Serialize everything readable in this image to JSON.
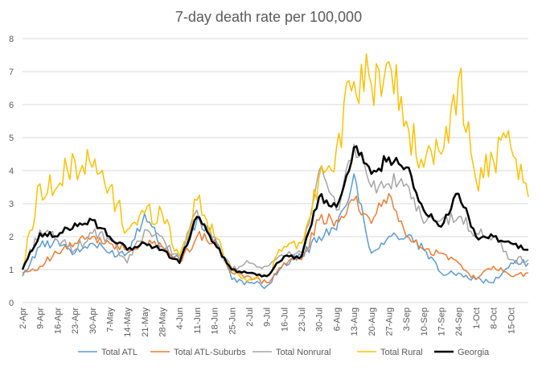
{
  "chart_data": {
    "type": "line",
    "title": "7-day death rate per 100,000",
    "xlabel": "",
    "ylabel": "",
    "ylim": [
      0,
      8
    ],
    "yticks": [
      0,
      1,
      2,
      3,
      4,
      5,
      6,
      7,
      8
    ],
    "grid": true,
    "legend": "bottom",
    "x_start": "2-Apr",
    "x_end": "17-Oct",
    "x_tick_labels": [
      "2-Apr",
      "9-Apr",
      "16-Apr",
      "23-Apr",
      "30-Apr",
      "7-May",
      "14-May",
      "21-May",
      "28-May",
      "4-Jun",
      "11-Jun",
      "18-Jun",
      "25-Jun",
      "2-Jul",
      "9-Jul",
      "16-Jul",
      "23-Jul",
      "30-Jul",
      "6-Aug",
      "13-Aug",
      "20-Aug",
      "27-Aug",
      "3-Sep",
      "10-Sep",
      "17-Sep",
      "24-Sep",
      "1-Oct",
      "8-Oct",
      "15-Oct"
    ],
    "anchor_labels": [
      "2-Apr",
      "9-Apr",
      "16-Apr",
      "23-Apr",
      "30-Apr",
      "7-May",
      "14-May",
      "21-May",
      "28-May",
      "4-Jun",
      "11-Jun",
      "18-Jun",
      "25-Jun",
      "2-Jul",
      "9-Jul",
      "16-Jul",
      "23-Jul",
      "30-Jul",
      "6-Aug",
      "13-Aug",
      "20-Aug",
      "27-Aug",
      "3-Sep",
      "10-Sep",
      "17-Sep",
      "24-Sep",
      "1-Oct",
      "8-Oct",
      "15-Oct",
      "17-Oct"
    ],
    "series": [
      {
        "name": "Total ATL",
        "color": "#5b9bd5",
        "width": 1.5,
        "values": [
          0.8,
          1.7,
          1.9,
          1.5,
          1.8,
          1.5,
          1.5,
          2.7,
          1.7,
          1.3,
          2.5,
          2.0,
          0.7,
          0.6,
          0.5,
          1.2,
          1.4,
          2.0,
          2.2,
          3.9,
          1.5,
          2.0,
          2.0,
          1.6,
          0.9,
          0.9,
          0.7,
          0.6,
          1.2,
          1.2
        ]
      },
      {
        "name": "Total ATL-Suburbs",
        "color": "#ed7d31",
        "width": 1.5,
        "values": [
          0.9,
          1.1,
          1.5,
          1.8,
          2.0,
          1.8,
          1.6,
          1.8,
          1.7,
          1.2,
          2.0,
          1.9,
          0.9,
          0.8,
          0.6,
          1.2,
          1.3,
          2.5,
          2.5,
          3.1,
          2.4,
          3.3,
          2.0,
          1.6,
          1.5,
          1.2,
          0.7,
          1.1,
          0.8,
          0.9
        ]
      },
      {
        "name": "Total Nonrural",
        "color": "#a5a5a5",
        "width": 1.5,
        "values": [
          1.0,
          2.2,
          1.9,
          1.6,
          2.1,
          1.9,
          1.2,
          2.2,
          2.0,
          1.3,
          2.8,
          1.8,
          1.0,
          1.2,
          1.1,
          1.4,
          1.5,
          4.0,
          2.8,
          4.8,
          3.5,
          3.6,
          3.6,
          2.4,
          2.5,
          2.6,
          2.1,
          2.0,
          1.3,
          1.3
        ]
      },
      {
        "name": "Total Rural",
        "color": "#ffc000",
        "width": 1.5,
        "values": [
          1.0,
          3.6,
          3.5,
          4.3,
          4.1,
          3.5,
          2.2,
          2.7,
          2.7,
          1.4,
          3.1,
          2.0,
          1.0,
          0.7,
          0.8,
          1.7,
          1.8,
          3.8,
          4.7,
          6.7,
          6.6,
          7.3,
          5.5,
          4.1,
          4.5,
          6.8,
          3.7,
          4.3,
          4.7,
          3.2
        ]
      },
      {
        "name": "Georgia",
        "color": "#000000",
        "width": 2.5,
        "values": [
          1.0,
          2.1,
          2.0,
          2.4,
          2.5,
          2.0,
          1.6,
          1.8,
          1.6,
          1.2,
          2.6,
          1.8,
          1.0,
          0.9,
          0.8,
          1.4,
          1.4,
          3.2,
          2.9,
          4.7,
          3.9,
          4.4,
          4.1,
          2.8,
          2.3,
          3.3,
          2.0,
          2.0,
          1.8,
          1.6
        ]
      }
    ]
  }
}
